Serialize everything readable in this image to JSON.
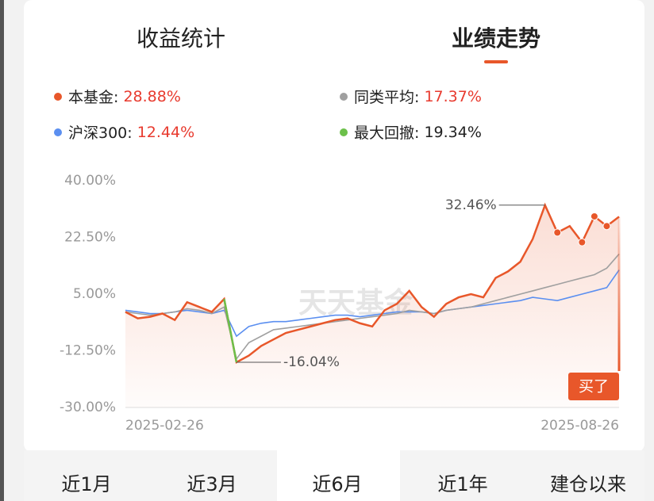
{
  "tabs": {
    "items": [
      "收益统计",
      "业绩走势"
    ],
    "active": 1
  },
  "chart_data": {
    "type": "line",
    "categories": [
      "2025-02-26",
      null,
      null,
      null,
      null,
      null,
      null,
      null,
      null,
      null,
      null,
      null,
      null,
      null,
      null,
      null,
      null,
      null,
      null,
      null,
      null,
      null,
      null,
      null,
      null,
      null,
      null,
      null,
      null,
      null,
      null,
      null,
      null,
      null,
      null,
      null,
      null,
      null,
      null,
      null,
      "2025-08-26"
    ],
    "series": [
      {
        "name": "本基金",
        "color": "#e8572a",
        "legend_value": "28.88%",
        "values": [
          -0.5,
          -2.5,
          -2,
          -1,
          -3,
          2.5,
          1,
          -0.5,
          3.5,
          -16.04,
          -14,
          -11,
          -9,
          -7,
          -6,
          -5,
          -4,
          -3,
          -2.5,
          -4,
          -5,
          0,
          2,
          6,
          1,
          -2,
          2,
          4,
          5,
          4,
          10,
          12,
          15,
          22,
          32.46,
          24,
          26,
          21,
          29,
          26,
          28.88
        ],
        "value_labels": [
          null,
          null,
          null,
          null,
          null,
          null,
          null,
          null,
          null,
          "-16.04%",
          null,
          null,
          null,
          null,
          null,
          null,
          null,
          null,
          null,
          null,
          null,
          null,
          null,
          null,
          null,
          null,
          null,
          null,
          null,
          null,
          null,
          null,
          null,
          null,
          "32.46%",
          null,
          null,
          null,
          null,
          null,
          null
        ]
      },
      {
        "name": "同类平均",
        "color": "#a0a0a0",
        "legend_value": "17.37%",
        "values": [
          -0.5,
          -1,
          -1.5,
          -1,
          -0.5,
          0.5,
          0,
          -1,
          1,
          -15,
          -10,
          -8,
          -6,
          -5.5,
          -5,
          -4.5,
          -4,
          -3.5,
          -3,
          -2.5,
          -2,
          -1.5,
          -1,
          0,
          -0.5,
          -1,
          0,
          0.5,
          1,
          2,
          3,
          4,
          5,
          6,
          7,
          8,
          9,
          10,
          11,
          13,
          17.37
        ]
      },
      {
        "name": "沪深300",
        "color": "#5b8ff0",
        "legend_value": "12.44%",
        "values": [
          0,
          -0.5,
          -1,
          -1,
          -0.5,
          0,
          -0.5,
          -1,
          0,
          -8,
          -5,
          -4,
          -3.5,
          -3.5,
          -3,
          -2.5,
          -2,
          -1.5,
          -1.5,
          -2,
          -1.5,
          -1,
          -0.5,
          -0.5,
          -0.5,
          -1,
          0,
          0.5,
          1,
          1.5,
          2,
          2.5,
          3,
          4,
          3.5,
          3,
          4,
          5,
          6,
          7,
          12.44
        ]
      }
    ],
    "drawdown": {
      "name": "最大回撤",
      "color": "#6cc04a",
      "legend_value": "19.34%",
      "from": 8,
      "to": 9
    },
    "markers": [
      35,
      37,
      38,
      39
    ],
    "ylim": [
      -30,
      40
    ],
    "yticks": [
      {
        "value": 40,
        "label": "40.00%"
      },
      {
        "value": 22.5,
        "label": "22.50%"
      },
      {
        "value": 5,
        "label": "5.00%"
      },
      {
        "value": -12.5,
        "label": "-12.50%"
      },
      {
        "value": -30,
        "label": "-30.00%"
      }
    ],
    "grid": false,
    "watermark": "天天基金",
    "badge": "买了"
  },
  "periods": {
    "items": [
      "近1月",
      "近3月",
      "近6月",
      "近1年",
      "建仓以来"
    ],
    "active": 2
  }
}
